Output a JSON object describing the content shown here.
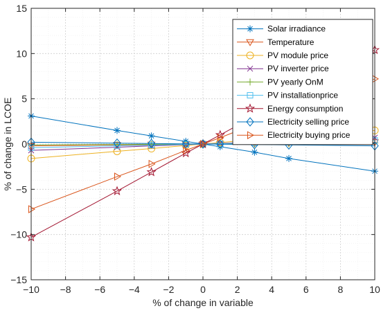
{
  "chart_data": {
    "type": "line",
    "xlabel": "% of change in variable",
    "ylabel": "% of change in LCOE",
    "xlim": [
      -10,
      10
    ],
    "ylim": [
      -15,
      15
    ],
    "xticks": [
      -10,
      -8,
      -6,
      -4,
      -2,
      0,
      2,
      4,
      6,
      8,
      10
    ],
    "yticks": [
      -15,
      -10,
      -5,
      0,
      5,
      10,
      15
    ],
    "grid": "dotted",
    "legend_position": "top-right",
    "x": [
      -10,
      -5,
      -3,
      -1,
      0,
      1,
      3,
      5,
      10
    ],
    "series": [
      {
        "name": "Solar irradiance",
        "color": "#0072BD",
        "marker": "asterisk",
        "values": [
          3.1,
          1.5,
          0.9,
          0.3,
          0,
          -0.3,
          -0.9,
          -1.6,
          -3.0
        ]
      },
      {
        "name": "Temperature",
        "color": "#D95319",
        "marker": "triangle-down",
        "values": [
          -0.2,
          -0.1,
          -0.06,
          -0.02,
          0,
          0.02,
          0.06,
          0.1,
          0.2
        ]
      },
      {
        "name": "PV module price",
        "color": "#EDB120",
        "marker": "circle",
        "values": [
          -1.6,
          -0.8,
          -0.5,
          -0.16,
          0,
          0.16,
          0.5,
          0.8,
          1.5
        ]
      },
      {
        "name": "PV inverter price",
        "color": "#7E2F8E",
        "marker": "x",
        "values": [
          -0.7,
          -0.35,
          -0.2,
          -0.07,
          0,
          0.07,
          0.2,
          0.35,
          0.7
        ]
      },
      {
        "name": "PV yearly OnM",
        "color": "#77AC30",
        "marker": "plus",
        "values": [
          -0.1,
          -0.05,
          -0.03,
          -0.01,
          0,
          0.01,
          0.03,
          0.05,
          0.1
        ]
      },
      {
        "name": "PV installationprice",
        "color": "#4DBEEE",
        "marker": "square",
        "values": [
          -0.4,
          -0.2,
          -0.12,
          -0.04,
          0,
          0.04,
          0.12,
          0.2,
          0.4
        ]
      },
      {
        "name": "Energy consumption",
        "color": "#A2142F",
        "marker": "pentagram",
        "values": [
          -10.3,
          -5.2,
          -3.1,
          -1.0,
          0,
          1.0,
          3.1,
          5.2,
          10.4
        ]
      },
      {
        "name": "Electricity selling price",
        "color": "#0072BD",
        "marker": "diamond",
        "values": [
          0.2,
          0.1,
          0.06,
          0.02,
          0,
          -0.02,
          -0.06,
          -0.1,
          -0.2
        ]
      },
      {
        "name": "Electricity buying price",
        "color": "#D95319",
        "marker": "triangle-right",
        "values": [
          -7.2,
          -3.6,
          -2.2,
          -0.7,
          0,
          0.7,
          2.2,
          3.6,
          7.2
        ]
      }
    ]
  }
}
